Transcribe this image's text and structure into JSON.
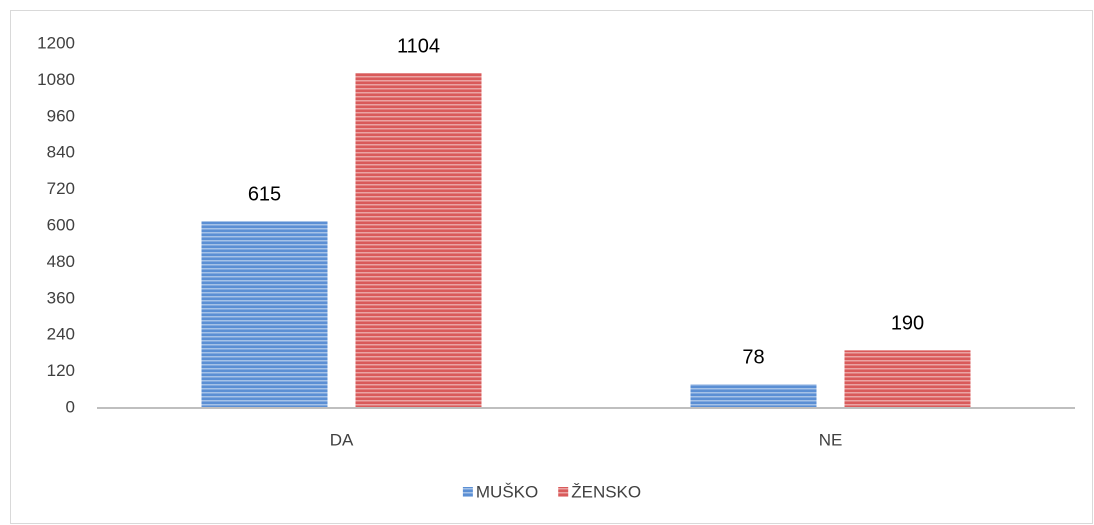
{
  "chart_data": {
    "type": "bar",
    "categories": [
      "DA",
      "NE"
    ],
    "series": [
      {
        "name": "MUŠKO",
        "color": "#5b8fd4",
        "values": [
          615,
          78
        ]
      },
      {
        "name": "ŽENSKO",
        "color": "#d95a5a",
        "values": [
          1104,
          190
        ]
      }
    ],
    "ylim": [
      0,
      1200
    ],
    "yticks": [
      0,
      120,
      240,
      360,
      480,
      600,
      720,
      840,
      960,
      1080,
      1200
    ],
    "grid": false,
    "legend": "bottom"
  }
}
